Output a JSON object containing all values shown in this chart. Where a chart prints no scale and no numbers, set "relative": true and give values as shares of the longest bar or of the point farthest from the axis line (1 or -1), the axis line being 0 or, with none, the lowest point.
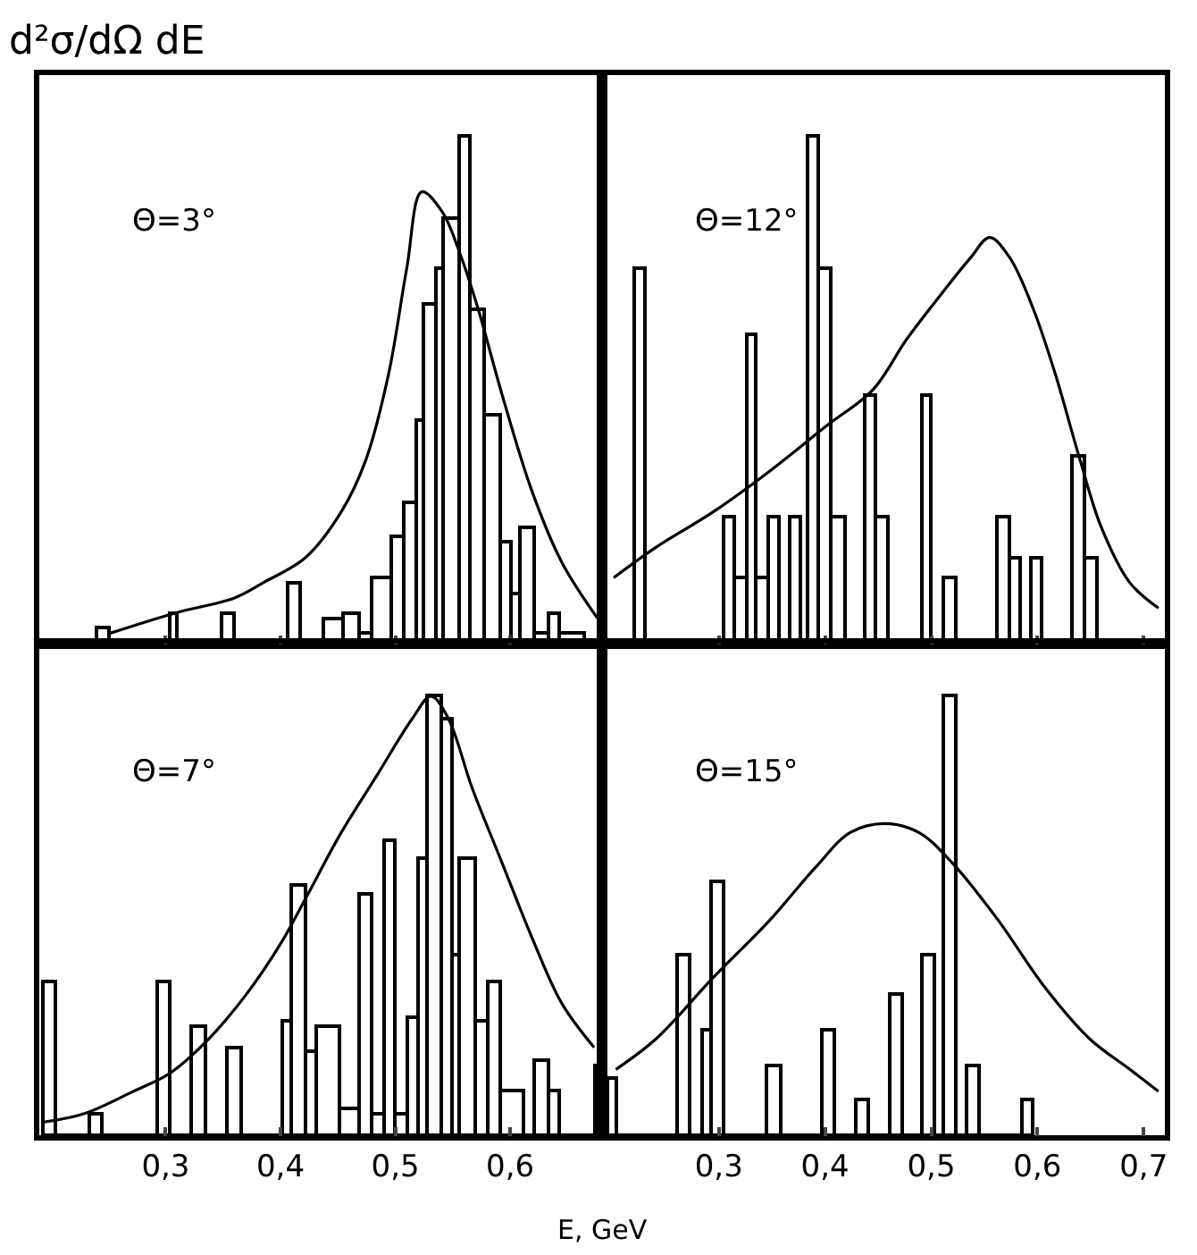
{
  "chart_data": [
    {
      "type": "histogram",
      "relative": true,
      "ylabel": "d²σ/dΩ dE",
      "annotations": [
        "Θ=3°"
      ],
      "xlim": [
        0.19,
        0.68
      ],
      "xticks": [
        {
          "value": 0.3,
          "label": null
        },
        {
          "value": 0.4,
          "label": null
        },
        {
          "value": 0.5,
          "label": null
        },
        {
          "value": 0.6,
          "label": null
        }
      ],
      "tick_labels": false,
      "series": [
        {
          "color": "#000000",
          "bins": [
            0.24,
            0.251,
            0.303,
            0.31,
            0.349,
            0.36,
            0.406,
            0.417,
            0.437,
            0.455,
            0.469,
            0.48,
            0.497,
            0.507,
            0.518,
            0.525,
            0.536,
            0.542,
            0.556,
            0.565,
            0.577,
            0.592,
            0.6,
            0.609,
            0.621,
            0.633,
            0.642,
            0.665
          ],
          "values": [
            0.03,
            0,
            0.06,
            0,
            0.06,
            0,
            0.12,
            0,
            0.05,
            0.06,
            0.02,
            0.13,
            0.21,
            0.28,
            0.44,
            0.67,
            0.74,
            0.84,
            1.0,
            0.66,
            0.45,
            0.2,
            0.1,
            0.23,
            0.02,
            0.06,
            0.02
          ]
        },
        {
          "type": "line",
          "color": "#000000",
          "x": [
            0.251,
            0.308,
            0.36,
            0.385,
            0.422,
            0.453,
            0.474,
            0.494,
            0.51,
            0.523,
            0.541,
            0.556,
            0.572,
            0.593,
            0.619,
            0.645,
            0.676
          ],
          "values": [
            0.02,
            0.06,
            0.09,
            0.12,
            0.17,
            0.26,
            0.36,
            0.53,
            0.74,
            0.89,
            0.85,
            0.77,
            0.66,
            0.49,
            0.3,
            0.16,
            0.05
          ]
        }
      ]
    },
    {
      "type": "histogram",
      "relative": true,
      "annotations": [
        "Θ=12°"
      ],
      "xlim": [
        0.19,
        0.72
      ],
      "xticks": [
        {
          "value": 0.3,
          "label": null
        },
        {
          "value": 0.4,
          "label": null
        },
        {
          "value": 0.5,
          "label": null
        },
        {
          "value": 0.6,
          "label": null
        },
        {
          "value": 0.7,
          "label": null
        }
      ],
      "tick_labels": false,
      "series": [
        {
          "color": "#000000",
          "bins": [
            0.22,
            0.23,
            0.305,
            0.315,
            0.326,
            0.335,
            0.346,
            0.356,
            0.366,
            0.376,
            0.383,
            0.394,
            0.406,
            0.419,
            0.437,
            0.448,
            0.459,
            0.492,
            0.5,
            0.511,
            0.523,
            0.562,
            0.573,
            0.584,
            0.593,
            0.604,
            0.633,
            0.644,
            0.656
          ],
          "values": [
            0.74,
            0,
            0.25,
            0.13,
            0.61,
            0.13,
            0.25,
            0,
            0.25,
            0,
            1.0,
            0.74,
            0.25,
            0,
            0.49,
            0.25,
            0,
            0.49,
            0,
            0.13,
            0,
            0.25,
            0.17,
            0,
            0.17,
            0,
            0.37,
            0.17
          ]
        },
        {
          "type": "line",
          "color": "#000000",
          "x": [
            0.201,
            0.241,
            0.295,
            0.348,
            0.402,
            0.445,
            0.477,
            0.51,
            0.537,
            0.555,
            0.574,
            0.596,
            0.617,
            0.639,
            0.66,
            0.687,
            0.714
          ],
          "values": [
            0.13,
            0.19,
            0.26,
            0.34,
            0.43,
            0.5,
            0.6,
            0.69,
            0.76,
            0.8,
            0.76,
            0.66,
            0.53,
            0.37,
            0.23,
            0.12,
            0.07
          ]
        }
      ]
    },
    {
      "type": "histogram",
      "relative": true,
      "xlabel": "E, GeV",
      "annotations": [
        "Θ=7°"
      ],
      "xlim": [
        0.19,
        0.68
      ],
      "xticks": [
        {
          "value": 0.3,
          "label": "0,3"
        },
        {
          "value": 0.4,
          "label": "0,4"
        },
        {
          "value": 0.5,
          "label": "0,5"
        },
        {
          "value": 0.6,
          "label": "0,6"
        }
      ],
      "tick_labels": "x",
      "series": [
        {
          "color": "#000000",
          "bins": [
            0.193,
            0.204,
            0.233,
            0.245,
            0.293,
            0.304,
            0.322,
            0.335,
            0.353,
            0.365,
            0.401,
            0.41,
            0.421,
            0.431,
            0.452,
            0.469,
            0.48,
            0.49,
            0.499,
            0.51,
            0.52,
            0.528,
            0.54,
            0.55,
            0.556,
            0.569,
            0.581,
            0.592,
            0.612,
            0.621,
            0.633,
            0.642,
            0.673,
            0.678
          ],
          "values": [
            0.35,
            0,
            0.05,
            0,
            0.35,
            0,
            0.25,
            0,
            0.2,
            0,
            0.26,
            0.57,
            0.19,
            0.25,
            0.06,
            0.55,
            0.05,
            0.67,
            0.05,
            0.27,
            0.63,
            1.0,
            0.95,
            0.41,
            0.63,
            0.26,
            0.35,
            0.1,
            0,
            0.17,
            0.1,
            0,
            0.16
          ]
        },
        {
          "type": "line",
          "color": "#000000",
          "x": [
            0.194,
            0.23,
            0.272,
            0.303,
            0.334,
            0.37,
            0.401,
            0.422,
            0.453,
            0.484,
            0.515,
            0.531,
            0.546,
            0.567,
            0.593,
            0.619,
            0.645,
            0.673
          ],
          "values": [
            0.03,
            0.05,
            0.1,
            0.14,
            0.21,
            0.32,
            0.44,
            0.54,
            0.69,
            0.82,
            0.95,
            1.0,
            0.95,
            0.79,
            0.62,
            0.45,
            0.3,
            0.2
          ]
        }
      ]
    },
    {
      "type": "histogram",
      "relative": true,
      "annotations": [
        "Θ=15°"
      ],
      "xlim": [
        0.19,
        0.72
      ],
      "xticks": [
        {
          "value": 0.3,
          "label": "0,3"
        },
        {
          "value": 0.4,
          "label": "0,4"
        },
        {
          "value": 0.5,
          "label": "0,5"
        },
        {
          "value": 0.6,
          "label": "0,6"
        },
        {
          "value": 0.7,
          "label": "0,7"
        }
      ],
      "tick_labels": "x",
      "series": [
        {
          "color": "#000000",
          "bins": [
            0.195,
            0.203,
            0.261,
            0.273,
            0.284,
            0.293,
            0.305,
            0.345,
            0.358,
            0.397,
            0.409,
            0.429,
            0.44,
            0.461,
            0.472,
            0.492,
            0.503,
            0.512,
            0.523,
            0.534,
            0.545,
            0.585,
            0.596
          ],
          "values": [
            0.13,
            0,
            0.41,
            0,
            0.24,
            0.58,
            0,
            0.16,
            0,
            0.24,
            0,
            0.08,
            0,
            0.32,
            0,
            0.41,
            0,
            1.0,
            0,
            0.16,
            0,
            0.08
          ]
        },
        {
          "type": "line",
          "color": "#000000",
          "x": [
            0.203,
            0.241,
            0.295,
            0.348,
            0.391,
            0.424,
            0.456,
            0.488,
            0.52,
            0.563,
            0.606,
            0.649,
            0.687,
            0.714
          ],
          "values": [
            0.15,
            0.22,
            0.36,
            0.49,
            0.61,
            0.69,
            0.71,
            0.69,
            0.62,
            0.49,
            0.34,
            0.22,
            0.15,
            0.1
          ]
        }
      ]
    }
  ]
}
